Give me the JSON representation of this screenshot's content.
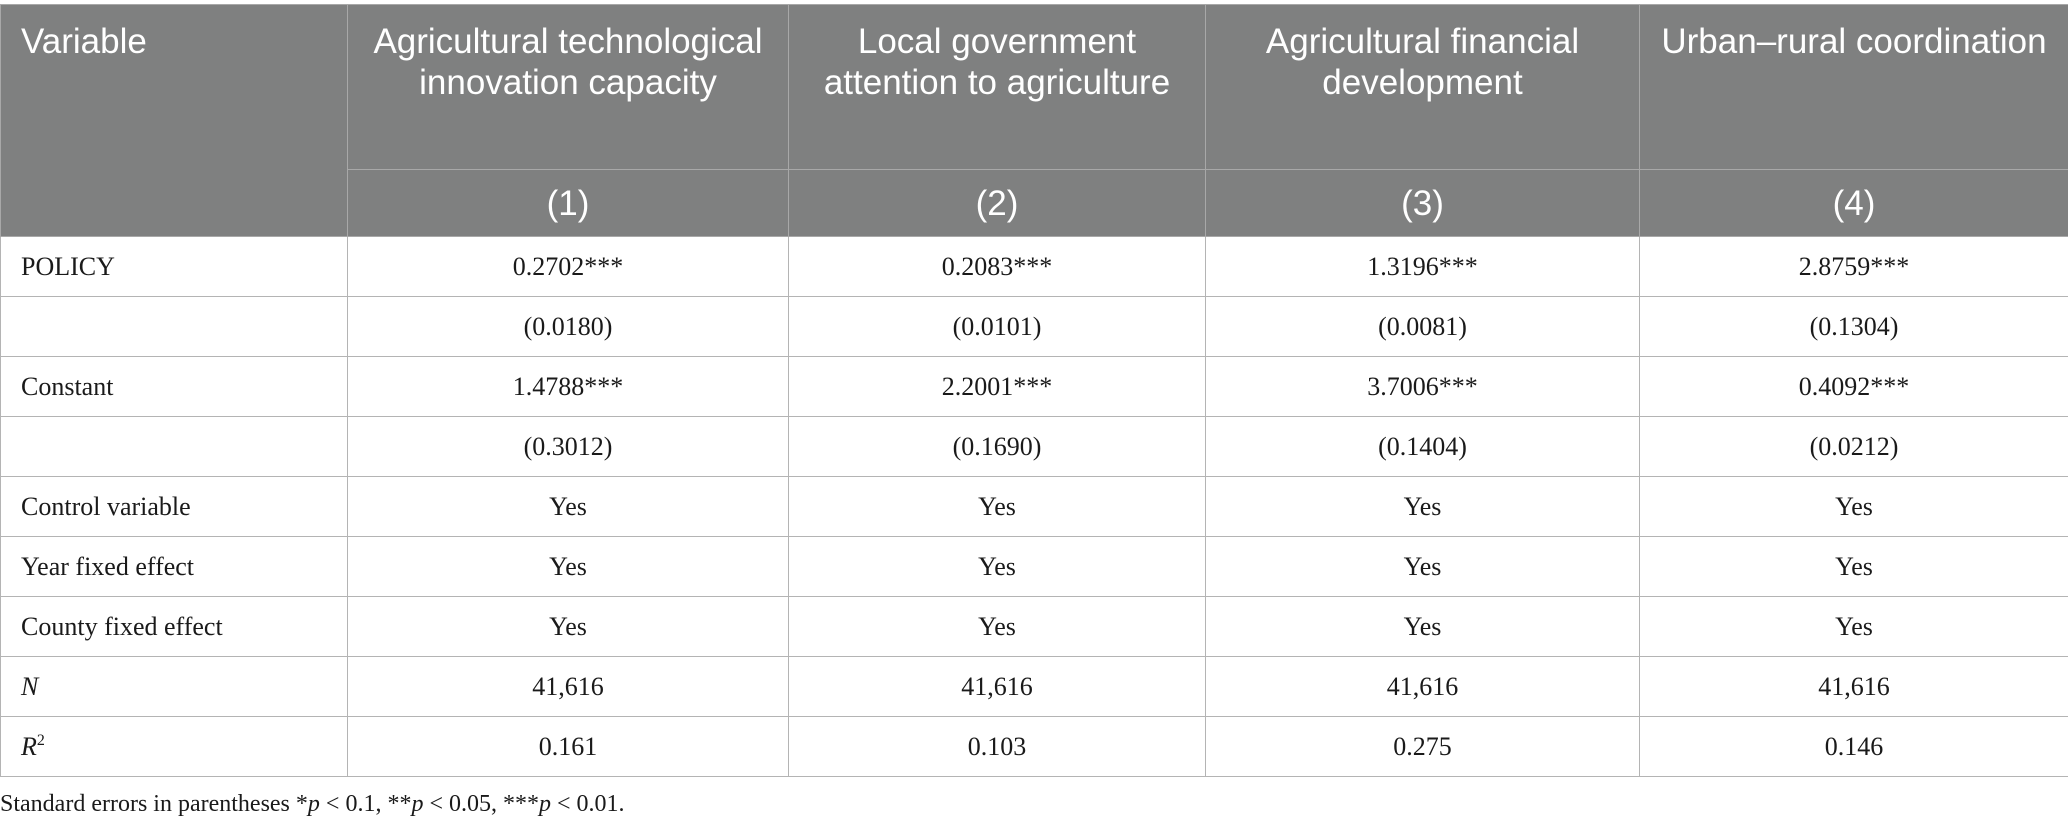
{
  "table": {
    "header": {
      "variable": "Variable",
      "groups": [
        "Agricultural technological innovation capacity",
        "Local government attention to agriculture",
        "Agricultural financial development",
        "Urban–rural coordination"
      ],
      "model_numbers": [
        "(1)",
        "(2)",
        "(3)",
        "(4)"
      ]
    },
    "rows": [
      {
        "label": "POLICY",
        "values": [
          "0.2702***",
          "0.2083***",
          "1.3196***",
          "2.8759***"
        ]
      },
      {
        "label": "",
        "values": [
          "(0.0180)",
          "(0.0101)",
          "(0.0081)",
          "(0.1304)"
        ]
      },
      {
        "label": "Constant",
        "values": [
          "1.4788***",
          "2.2001***",
          "3.7006***",
          "0.4092***"
        ]
      },
      {
        "label": "",
        "values": [
          "(0.3012)",
          "(0.1690)",
          "(0.1404)",
          "(0.0212)"
        ]
      },
      {
        "label": "Control variable",
        "values": [
          "Yes",
          "Yes",
          "Yes",
          "Yes"
        ]
      },
      {
        "label": "Year fixed effect",
        "values": [
          "Yes",
          "Yes",
          "Yes",
          "Yes"
        ]
      },
      {
        "label": "County fixed effect",
        "values": [
          "Yes",
          "Yes",
          "Yes",
          "Yes"
        ]
      },
      {
        "label": "N",
        "values": [
          "41,616",
          "41,616",
          "41,616",
          "41,616"
        ]
      },
      {
        "label_base": "R",
        "label_sup": "2",
        "values": [
          "0.161",
          "0.103",
          "0.275",
          "0.146"
        ]
      }
    ]
  },
  "footnote": {
    "prefix": "Standard errors in parentheses *",
    "p1": "p",
    "t1": " < 0.1, **",
    "p2": "p",
    "t2": " < 0.05, ***",
    "p3": "p",
    "t3": " < 0.01."
  }
}
